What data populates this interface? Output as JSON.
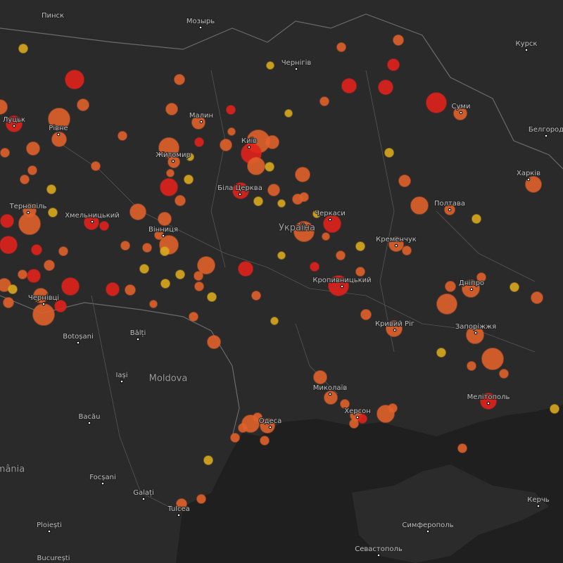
{
  "map": {
    "labels": [
      "Пинск",
      "Мозырь",
      "Чернігів",
      "Курск",
      "Луцьк",
      "Рівне",
      "Малин",
      "Київ",
      "Житомир",
      "Суми",
      "Белгород",
      "Харків",
      "Біла Церква",
      "Полтава",
      "Тернопіль",
      "Хмельницький",
      "Вінниця",
      "Черкаси",
      "Україна",
      "Кременчук",
      "Кропивницький",
      "Дніпро",
      "Чернівці",
      "Bălți",
      "Botoșani",
      "Кривий Ріг",
      "Запоріжжя",
      "Iași",
      "Moldova",
      "Миколаїв",
      "Херсон",
      "Мелітополь",
      "Одеса",
      "Bacău",
      "mânia",
      "Focșani",
      "Galați",
      "Tulcea",
      "Керчь",
      "Ploiești",
      "Симферополь",
      "Севастополь",
      "București"
    ]
  }
}
